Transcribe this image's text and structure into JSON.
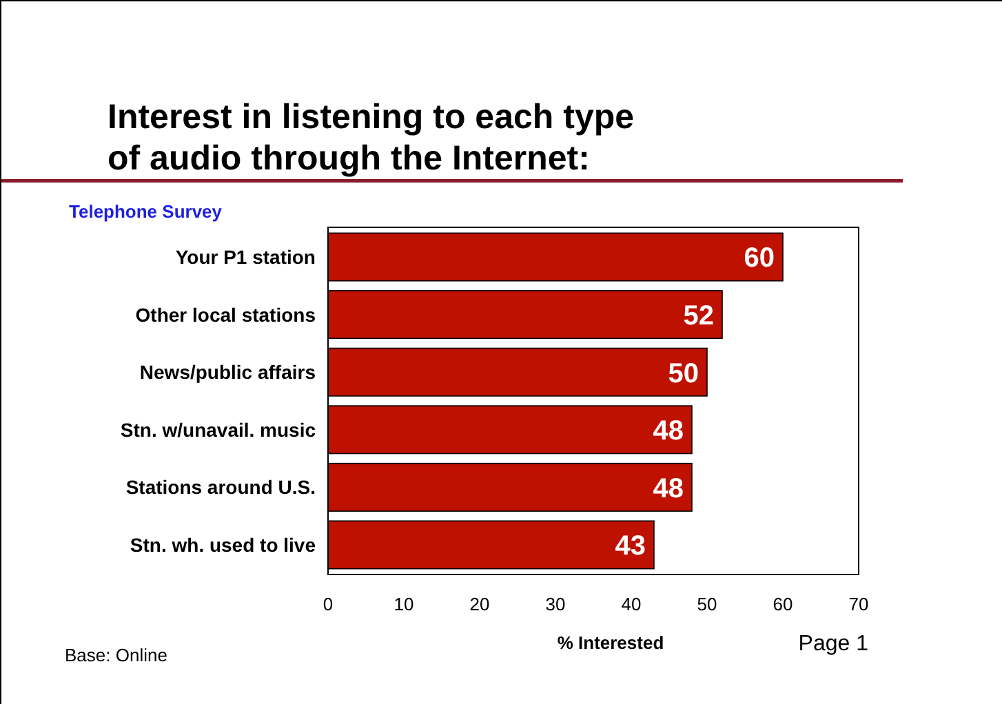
{
  "chart_data": {
    "type": "bar",
    "orientation": "horizontal",
    "title": "Interest in listening to each type of audio through the Internet:",
    "subtitle": "Telephone Survey",
    "xlabel": "% Interested",
    "categories": [
      "Your P1 station",
      "Other local stations",
      "News/public affairs",
      "Stn. w/unavail. music",
      "Stations around U.S.",
      "Stn. wh. used to live"
    ],
    "values": [
      60,
      52,
      50,
      48,
      48,
      43
    ],
    "color": "#bf1100",
    "data_labels": true,
    "xlim": [
      0,
      70
    ],
    "xticks": [
      0,
      10,
      20,
      30,
      40,
      50,
      60,
      70
    ],
    "grid": false,
    "annotations": [
      "Base: Online",
      "Page 1"
    ]
  }
}
